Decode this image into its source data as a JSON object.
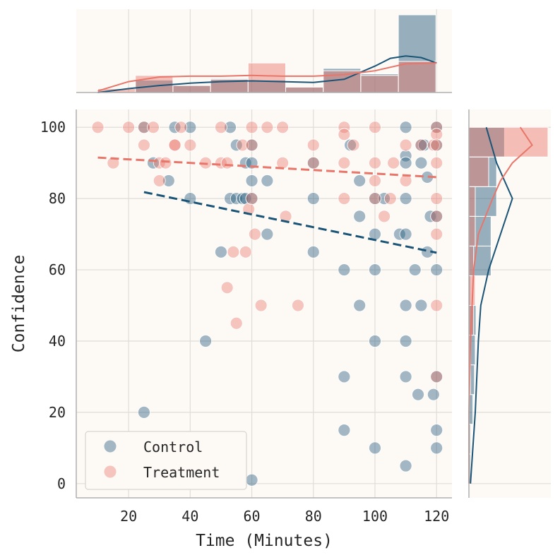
{
  "chart_data": {
    "type": "scatter",
    "xlabel": "Time (Minutes)",
    "ylabel": "Confidence",
    "xlim": [
      3,
      125
    ],
    "ylim": [
      -4,
      105
    ],
    "xticks": [
      "20",
      "40",
      "60",
      "80",
      "100",
      "120"
    ],
    "yticks": [
      "0",
      "20",
      "40",
      "60",
      "80",
      "100"
    ],
    "grid": true,
    "legend": {
      "location": "lower-left",
      "entries": [
        "Control",
        "Treatment"
      ]
    },
    "colors": {
      "control": "#1a5577",
      "treatment": "#e8766a",
      "panel_bg": "#fdf9f5",
      "grid": "#e0dcd8",
      "axis": "#b0b0b0"
    },
    "series": [
      {
        "name": "Control",
        "points": [
          [
            25,
            100
          ],
          [
            28,
            90
          ],
          [
            33,
            85
          ],
          [
            35,
            100
          ],
          [
            40,
            100
          ],
          [
            40,
            80
          ],
          [
            25,
            20
          ],
          [
            45,
            40
          ],
          [
            50,
            65
          ],
          [
            53,
            100
          ],
          [
            53,
            80
          ],
          [
            55,
            95
          ],
          [
            55,
            80
          ],
          [
            57,
            80
          ],
          [
            58,
            80
          ],
          [
            58,
            90
          ],
          [
            60,
            95
          ],
          [
            60,
            90
          ],
          [
            60,
            85
          ],
          [
            60,
            80
          ],
          [
            60,
            1
          ],
          [
            65,
            85
          ],
          [
            65,
            70
          ],
          [
            80,
            80
          ],
          [
            80,
            65
          ],
          [
            80,
            90
          ],
          [
            90,
            60
          ],
          [
            90,
            30
          ],
          [
            90,
            15
          ],
          [
            92,
            95
          ],
          [
            95,
            85
          ],
          [
            95,
            75
          ],
          [
            95,
            50
          ],
          [
            100,
            80
          ],
          [
            100,
            70
          ],
          [
            100,
            60
          ],
          [
            100,
            40
          ],
          [
            100,
            10
          ],
          [
            103,
            80
          ],
          [
            108,
            70
          ],
          [
            110,
            100
          ],
          [
            110,
            92
          ],
          [
            110,
            90
          ],
          [
            110,
            80
          ],
          [
            110,
            70
          ],
          [
            110,
            50
          ],
          [
            110,
            40
          ],
          [
            110,
            30
          ],
          [
            110,
            5
          ],
          [
            113,
            60
          ],
          [
            114,
            25
          ],
          [
            115,
            95
          ],
          [
            115,
            90
          ],
          [
            115,
            50
          ],
          [
            116,
            95
          ],
          [
            117,
            86
          ],
          [
            117,
            65
          ],
          [
            118,
            75
          ],
          [
            119,
            25
          ],
          [
            120,
            100
          ],
          [
            120,
            95
          ],
          [
            120,
            75
          ],
          [
            120,
            60
          ],
          [
            120,
            15
          ],
          [
            120,
            10
          ],
          [
            120,
            30
          ]
        ],
        "regression": {
          "x": [
            25,
            120
          ],
          "y": [
            81.8,
            64.8
          ]
        },
        "hist": {
          "bin_edges": [
            10,
            22.2,
            34.4,
            46.6,
            58.8,
            71,
            83.2,
            95.4,
            107.6,
            119.8
          ],
          "density": [
            0,
            0.16,
            0.09,
            0.18,
            0.16,
            0.07,
            0.31,
            0.24,
            1.0
          ]
        },
        "kde_x": [
          10,
          20,
          30,
          40,
          50,
          60,
          70,
          80,
          90,
          100,
          105,
          110,
          115,
          120
        ],
        "kde_x_density": [
          0,
          0.05,
          0.09,
          0.12,
          0.14,
          0.15,
          0.14,
          0.13,
          0.17,
          0.34,
          0.44,
          0.47,
          0.45,
          0.38
        ],
        "hist_y": {
          "bin_edges": [
            0,
            8.33,
            16.67,
            25,
            33.33,
            41.67,
            50,
            58.33,
            66.67,
            75,
            83.33,
            91.67,
            100
          ],
          "density": [
            0.02,
            0.02,
            0.05,
            0.07,
            0.08,
            0.09,
            0.02,
            0.28,
            0.28,
            0.35,
            0.35,
            0.45
          ]
        },
        "kde_y": [
          0,
          10,
          20,
          30,
          40,
          50,
          60,
          70,
          80,
          90,
          100
        ],
        "kde_y_density": [
          0.02,
          0.05,
          0.08,
          0.1,
          0.12,
          0.15,
          0.25,
          0.4,
          0.55,
          0.35,
          0.22
        ]
      },
      {
        "name": "Treatment",
        "points": [
          [
            10,
            100
          ],
          [
            15,
            90
          ],
          [
            20,
            100
          ],
          [
            25,
            95
          ],
          [
            25,
            100
          ],
          [
            28,
            100
          ],
          [
            30,
            90
          ],
          [
            30,
            85
          ],
          [
            32,
            90
          ],
          [
            35,
            95
          ],
          [
            35,
            95
          ],
          [
            37,
            100
          ],
          [
            40,
            95
          ],
          [
            45,
            90
          ],
          [
            50,
            100
          ],
          [
            50,
            90
          ],
          [
            52,
            90
          ],
          [
            52,
            55
          ],
          [
            54,
            65
          ],
          [
            55,
            45
          ],
          [
            57,
            95
          ],
          [
            58,
            65
          ],
          [
            59,
            77
          ],
          [
            60,
            100
          ],
          [
            60,
            95
          ],
          [
            60,
            80
          ],
          [
            61,
            70
          ],
          [
            63,
            50
          ],
          [
            65,
            100
          ],
          [
            70,
            100
          ],
          [
            70,
            90
          ],
          [
            71,
            75
          ],
          [
            75,
            50
          ],
          [
            80,
            95
          ],
          [
            80,
            90
          ],
          [
            90,
            100
          ],
          [
            90,
            98
          ],
          [
            90,
            90
          ],
          [
            90,
            80
          ],
          [
            93,
            95
          ],
          [
            100,
            100
          ],
          [
            100,
            90
          ],
          [
            100,
            85
          ],
          [
            100,
            80
          ],
          [
            103,
            75
          ],
          [
            105,
            80
          ],
          [
            106,
            90
          ],
          [
            110,
            95
          ],
          [
            110,
            85
          ],
          [
            115,
            95
          ],
          [
            119,
            95
          ],
          [
            120,
            100
          ],
          [
            120,
            98
          ],
          [
            120,
            95
          ],
          [
            120,
            90
          ],
          [
            120,
            80
          ],
          [
            120,
            75
          ],
          [
            120,
            70
          ],
          [
            120,
            50
          ],
          [
            120,
            30
          ]
        ],
        "regression": {
          "x": [
            10,
            120
          ],
          "y": [
            91.5,
            86.0
          ]
        },
        "hist": {
          "bin_edges": [
            10,
            22.2,
            34.4,
            46.6,
            58.8,
            71,
            83.2,
            95.4,
            107.6,
            119.8
          ],
          "density": [
            0.05,
            0.22,
            0.09,
            0.17,
            0.38,
            0.07,
            0.28,
            0.22,
            0.4
          ]
        },
        "kde_x": [
          10,
          20,
          30,
          40,
          50,
          60,
          70,
          80,
          90,
          100,
          110,
          120
        ],
        "kde_x_density": [
          0.02,
          0.14,
          0.2,
          0.21,
          0.21,
          0.22,
          0.21,
          0.21,
          0.23,
          0.28,
          0.37,
          0.38
        ],
        "hist_y": {
          "bin_edges": [
            0,
            8.33,
            16.67,
            25,
            33.33,
            41.67,
            50,
            58.33,
            66.67,
            75,
            83.33,
            91.67,
            100
          ],
          "density": [
            0,
            0,
            0,
            0.02,
            0.02,
            0.06,
            0.08,
            0.06,
            0.08,
            0.08,
            0.25,
            1.0
          ]
        },
        "kde_y": [
          0,
          20,
          40,
          50,
          60,
          70,
          80,
          85,
          90,
          95,
          100
        ],
        "kde_y_density": [
          0.0,
          0.0,
          0.02,
          0.04,
          0.06,
          0.12,
          0.3,
          0.4,
          0.55,
          0.8,
          0.65
        ]
      }
    ]
  }
}
